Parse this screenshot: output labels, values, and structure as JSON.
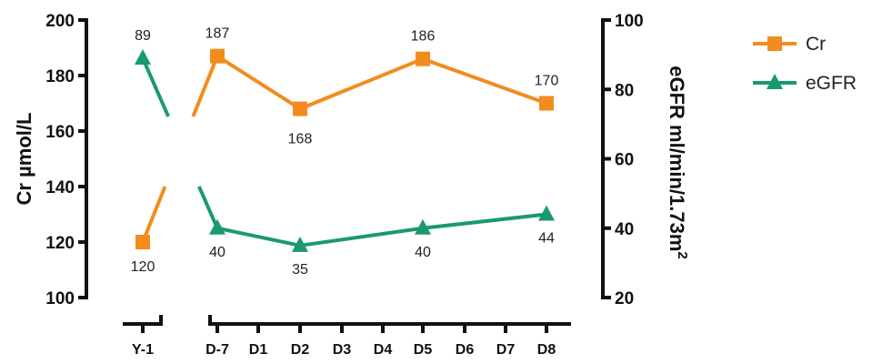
{
  "chart_data": {
    "type": "line",
    "title": "",
    "x_categories": [
      "Y-1",
      "D-7",
      "D1",
      "D2",
      "D3",
      "D4",
      "D5",
      "D6",
      "D7",
      "D8"
    ],
    "axis_break_after": "Y-1",
    "left_axis": {
      "label": "Cr µmol/L",
      "range": [
        100,
        200
      ],
      "ticks": [
        100,
        120,
        140,
        160,
        180,
        200
      ]
    },
    "right_axis": {
      "label_main": "eGFR ml/min/1.73m",
      "label_superscript": "2",
      "range": [
        20,
        100
      ],
      "ticks": [
        20,
        40,
        60,
        80,
        100
      ]
    },
    "series": [
      {
        "name": "Cr",
        "axis": "left",
        "color": "#f28c1e",
        "marker": "square",
        "points": [
          {
            "x": "Y-1",
            "y": 120,
            "label": "120"
          },
          {
            "x": "D-7",
            "y": 187,
            "label": "187"
          },
          {
            "x": "D2",
            "y": 168,
            "label": "168"
          },
          {
            "x": "D5",
            "y": 186,
            "label": "186"
          },
          {
            "x": "D8",
            "y": 170,
            "label": "170"
          }
        ]
      },
      {
        "name": "eGFR",
        "axis": "right",
        "color": "#1a9a6c",
        "marker": "triangle",
        "points": [
          {
            "x": "Y-1",
            "y": 89,
            "label": "89"
          },
          {
            "x": "D-7",
            "y": 40,
            "label": "40"
          },
          {
            "x": "D2",
            "y": 35,
            "label": "35"
          },
          {
            "x": "D5",
            "y": 40,
            "label": "40"
          },
          {
            "x": "D8",
            "y": 44,
            "label": "44"
          }
        ]
      }
    ],
    "legend": {
      "placement": "top-right",
      "entries": [
        "Cr",
        "eGFR"
      ]
    },
    "grid": false
  }
}
